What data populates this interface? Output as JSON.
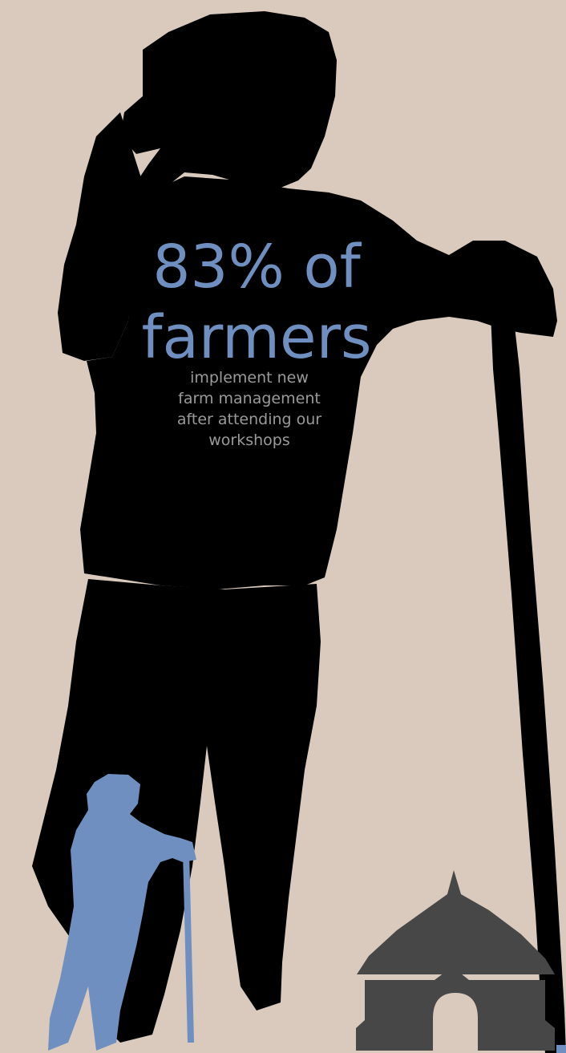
{
  "stat": {
    "line1": "83% of",
    "line2": "farmers"
  },
  "description": {
    "line1": "implement new",
    "line2": "farm management",
    "line3": "after attending our",
    "line4": "workshops"
  },
  "icons": {
    "large_figure": "farmer-silhouette-icon",
    "small_figure": "small-farmer-silhouette-icon",
    "hut": "hut-icon"
  },
  "colors": {
    "background": "#d9cabd",
    "silhouette": "#000000",
    "accent": "#6e8fc0",
    "hut": "#474747",
    "subtext": "#9a9a9a"
  }
}
